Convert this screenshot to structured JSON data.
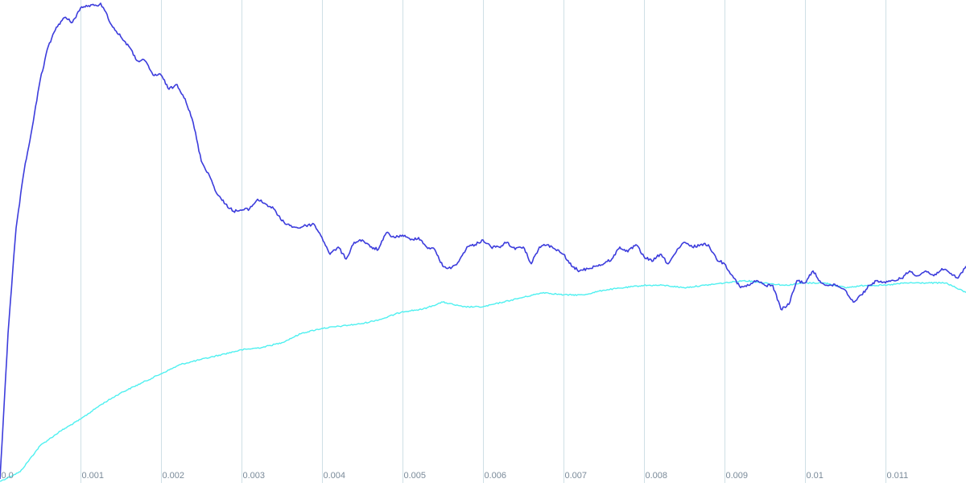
{
  "chart_data": {
    "type": "line",
    "title": "",
    "xlabel": "",
    "ylabel": "",
    "xlim": [
      0,
      0.012
    ],
    "x_ticks": [
      "0.0",
      "0.001",
      "0.002",
      "0.003",
      "0.004",
      "0.005",
      "0.006",
      "0.007",
      "0.008",
      "0.009",
      "0.01",
      "0.011"
    ],
    "x_tick_values": [
      0,
      0.001,
      0.002,
      0.003,
      0.004,
      0.005,
      0.006,
      0.007,
      0.008,
      0.009,
      0.01,
      0.011
    ],
    "grid": {
      "vertical": true,
      "horizontal": false
    },
    "legend": "none",
    "colors": {
      "gridline": "#cfe0e6",
      "tick_label": "#7a8a99"
    },
    "series": [
      {
        "color": "#3c3cdc",
        "x": [
          0,
          0.0001,
          0.0002,
          0.0003,
          0.0004,
          0.0005,
          0.0006,
          0.0007,
          0.0008,
          0.0009,
          0.001,
          0.0011,
          0.0012,
          0.00125,
          0.0013,
          0.0014,
          0.0015,
          0.0016,
          0.0017,
          0.0018,
          0.0019,
          0.002,
          0.0021,
          0.0022,
          0.0023,
          0.0024,
          0.0025,
          0.0026,
          0.0027,
          0.0028,
          0.0029,
          0.003,
          0.0031,
          0.0032,
          0.0033,
          0.0034,
          0.0035,
          0.0036,
          0.0037,
          0.0038,
          0.0039,
          0.004,
          0.0041,
          0.0042,
          0.0043,
          0.0044,
          0.0045,
          0.0046,
          0.0047,
          0.0048,
          0.0049,
          0.005,
          0.0051,
          0.0052,
          0.0053,
          0.0054,
          0.0055,
          0.0056,
          0.0057,
          0.0058,
          0.0059,
          0.006,
          0.0061,
          0.0062,
          0.0063,
          0.0064,
          0.0065,
          0.0066,
          0.0067,
          0.0068,
          0.0069,
          0.007,
          0.0071,
          0.0072,
          0.0073,
          0.0074,
          0.0075,
          0.0076,
          0.0077,
          0.0078,
          0.0079,
          0.008,
          0.0081,
          0.0082,
          0.0083,
          0.0084,
          0.0085,
          0.0086,
          0.0087,
          0.0088,
          0.0089,
          0.009,
          0.0091,
          0.0092,
          0.0093,
          0.0094,
          0.0095,
          0.0096,
          0.0097,
          0.0098,
          0.0099,
          0.01,
          0.0101,
          0.0102,
          0.0103,
          0.0104,
          0.0105,
          0.0106,
          0.0107,
          0.0108,
          0.0109,
          0.011,
          0.0111,
          0.0112,
          0.0113,
          0.0114,
          0.0115,
          0.0116,
          0.0117,
          0.0118,
          0.0119,
          0.012
        ],
        "y": [
          0.005,
          0.31,
          0.53,
          0.65,
          0.74,
          0.84,
          0.91,
          0.95,
          0.97,
          0.96,
          0.99,
          0.995,
          0.995,
          1.0,
          0.985,
          0.95,
          0.93,
          0.91,
          0.88,
          0.88,
          0.85,
          0.85,
          0.82,
          0.83,
          0.8,
          0.75,
          0.67,
          0.64,
          0.6,
          0.58,
          0.565,
          0.567,
          0.57,
          0.59,
          0.58,
          0.57,
          0.545,
          0.535,
          0.53,
          0.535,
          0.538,
          0.51,
          0.475,
          0.49,
          0.465,
          0.5,
          0.505,
          0.49,
          0.485,
          0.52,
          0.51,
          0.515,
          0.505,
          0.51,
          0.49,
          0.485,
          0.45,
          0.445,
          0.46,
          0.49,
          0.495,
          0.505,
          0.49,
          0.49,
          0.5,
          0.485,
          0.49,
          0.455,
          0.49,
          0.495,
          0.485,
          0.475,
          0.45,
          0.44,
          0.445,
          0.45,
          0.455,
          0.465,
          0.49,
          0.48,
          0.495,
          0.47,
          0.46,
          0.475,
          0.455,
          0.48,
          0.5,
          0.49,
          0.495,
          0.495,
          0.465,
          0.455,
          0.43,
          0.405,
          0.41,
          0.42,
          0.41,
          0.41,
          0.36,
          0.37,
          0.42,
          0.415,
          0.44,
          0.415,
          0.41,
          0.41,
          0.4,
          0.375,
          0.39,
          0.41,
          0.42,
          0.415,
          0.42,
          0.425,
          0.44,
          0.43,
          0.44,
          0.43,
          0.445,
          0.435,
          0.425,
          0.45
        ]
      },
      {
        "color": "#4ff0f0",
        "x": [
          0,
          0.00025,
          0.0005,
          0.00075,
          0.001,
          0.00125,
          0.0015,
          0.00175,
          0.002,
          0.00225,
          0.0025,
          0.00275,
          0.003,
          0.00325,
          0.0035,
          0.00375,
          0.004,
          0.00425,
          0.0045,
          0.00475,
          0.005,
          0.00525,
          0.0055,
          0.00575,
          0.006,
          0.00625,
          0.0065,
          0.00675,
          0.007,
          0.00725,
          0.0075,
          0.00775,
          0.008,
          0.00825,
          0.0085,
          0.00875,
          0.009,
          0.00925,
          0.0095,
          0.00975,
          0.01,
          0.01025,
          0.0105,
          0.01075,
          0.011,
          0.01125,
          0.0115,
          0.01175,
          0.012
        ],
        "y": [
          0,
          0.02,
          0.075,
          0.105,
          0.13,
          0.16,
          0.185,
          0.205,
          0.225,
          0.245,
          0.255,
          0.265,
          0.275,
          0.28,
          0.29,
          0.31,
          0.32,
          0.325,
          0.33,
          0.34,
          0.355,
          0.36,
          0.375,
          0.365,
          0.365,
          0.375,
          0.385,
          0.395,
          0.39,
          0.39,
          0.4,
          0.405,
          0.41,
          0.41,
          0.405,
          0.41,
          0.415,
          0.42,
          0.415,
          0.41,
          0.415,
          0.415,
          0.405,
          0.41,
          0.41,
          0.415,
          0.415,
          0.415,
          0.395
        ]
      }
    ]
  }
}
